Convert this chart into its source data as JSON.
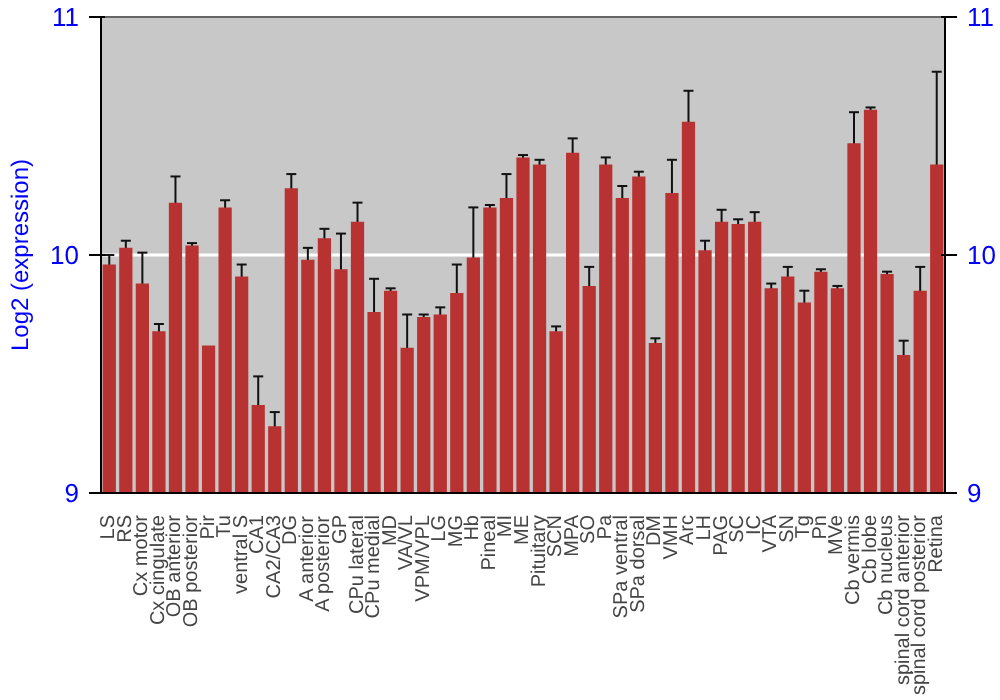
{
  "chart_data": {
    "type": "bar",
    "ylabel": "Log2 (expression)",
    "categories": [
      "LS",
      "RS",
      "Cx motor",
      "Cx cingulate",
      "OB anterior",
      "OB posterior",
      "Pir",
      "Tu",
      "ventral S",
      "CA1",
      "CA2/CA3",
      "DG",
      "A anterior",
      "A posterior",
      "GP",
      "CPu lateral",
      "CPu medial",
      "MD",
      "VA/VL",
      "VPM/VPL",
      "LG",
      "MG",
      "Hb",
      "Pineal",
      "MI",
      "ME",
      "Pituitary",
      "SCN",
      "MPA",
      "SO",
      "Pa",
      "SPa ventral",
      "SPa dorsal",
      "DM",
      "VMH",
      "Arc",
      "LH",
      "PAG",
      "SC",
      "IC",
      "VTA",
      "SN",
      "Tg",
      "Pn",
      "MVe",
      "Cb vermis",
      "Cb lobe",
      "Cb nucleus",
      "spinal cord anterior",
      "spinal cord posterior",
      "Retina"
    ],
    "values": [
      9.96,
      10.03,
      9.88,
      9.68,
      10.22,
      10.04,
      9.62,
      10.2,
      9.91,
      9.37,
      9.28,
      10.28,
      9.98,
      10.07,
      9.94,
      10.14,
      9.76,
      9.85,
      9.61,
      9.74,
      9.75,
      9.84,
      9.99,
      10.2,
      10.24,
      10.41,
      10.38,
      9.68,
      10.43,
      9.87,
      10.38,
      10.24,
      10.33,
      9.63,
      10.26,
      10.56,
      10.02,
      10.14,
      10.13,
      10.14,
      9.86,
      9.91,
      9.8,
      9.93,
      9.86,
      10.47,
      10.61,
      9.92,
      9.58,
      9.85,
      10.38
    ],
    "errors": [
      0.04,
      0.03,
      0.13,
      0.03,
      0.11,
      0.01,
      null,
      0.03,
      0.05,
      0.12,
      0.06,
      0.06,
      0.05,
      0.04,
      0.15,
      0.08,
      0.14,
      0.01,
      0.14,
      0.01,
      0.03,
      0.12,
      0.21,
      0.01,
      0.1,
      0.01,
      0.02,
      0.02,
      0.06,
      0.08,
      0.03,
      0.05,
      0.02,
      0.02,
      0.14,
      0.13,
      0.04,
      0.05,
      0.02,
      0.04,
      0.02,
      0.04,
      0.05,
      0.01,
      0.01,
      0.13,
      0.01,
      0.01,
      0.06,
      0.1,
      0.39
    ],
    "color": "#b83232",
    "ylim": [
      9,
      11
    ],
    "yticks": [
      9,
      10,
      11
    ],
    "y2lim": [
      9,
      11
    ],
    "y2ticks": [
      9,
      10,
      11
    ],
    "grid": "y"
  }
}
